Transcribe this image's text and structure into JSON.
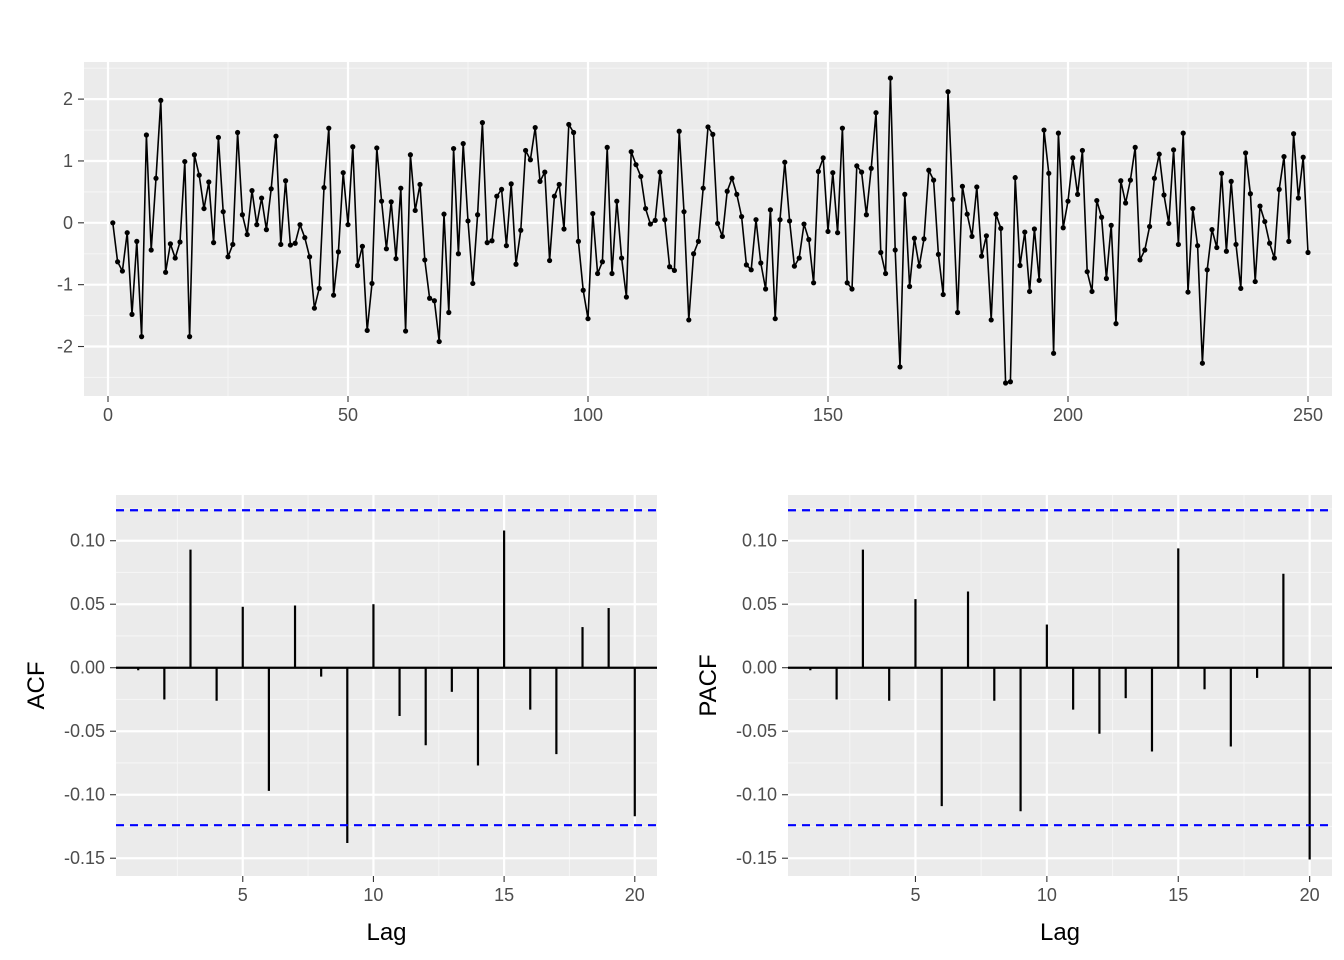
{
  "colors": {
    "panel_background": "#ebebeb",
    "major_grid": "#ffffff",
    "minor_grid": "#f5f5f5",
    "series": "#000000",
    "confidence_band": "#0000ff",
    "tick_text": "#4d4d4d"
  },
  "chart_data": [
    {
      "type": "line",
      "xlabel": "",
      "ylabel": "",
      "xlim": [
        -5,
        255
      ],
      "ylim": [
        -2.8,
        2.6
      ],
      "x_ticks": [
        0,
        50,
        100,
        150,
        200,
        250
      ],
      "y_ticks": [
        -2,
        -1,
        0,
        1,
        2
      ],
      "x_tick_labels": [
        "0",
        "50",
        "100",
        "150",
        "200",
        "250"
      ],
      "y_tick_labels": [
        "-2",
        "-1",
        "0",
        "1",
        "2"
      ],
      "grid": true,
      "markers": true,
      "x_start": 1,
      "values": [
        0.0,
        -0.63,
        -0.78,
        -0.16,
        -1.48,
        -0.3,
        -1.84,
        1.42,
        -0.44,
        0.72,
        1.98,
        -0.8,
        -0.34,
        -0.57,
        -0.31,
        0.99,
        -1.84,
        1.1,
        0.77,
        0.23,
        0.66,
        -0.32,
        1.38,
        0.18,
        -0.55,
        -0.35,
        1.46,
        0.13,
        -0.19,
        0.52,
        -0.03,
        0.4,
        -0.11,
        0.55,
        1.4,
        -0.35,
        0.68,
        -0.36,
        -0.33,
        -0.03,
        -0.24,
        -0.55,
        -1.38,
        -1.06,
        0.57,
        1.53,
        -1.17,
        -0.47,
        0.81,
        -0.03,
        1.23,
        -0.69,
        -0.38,
        -1.74,
        -0.98,
        1.21,
        0.35,
        -0.42,
        0.34,
        -0.58,
        0.56,
        -1.75,
        1.1,
        0.2,
        0.62,
        -0.6,
        -1.22,
        -1.26,
        -1.92,
        0.14,
        -1.45,
        1.2,
        -0.5,
        1.28,
        0.03,
        -0.98,
        0.13,
        1.62,
        -0.32,
        -0.29,
        0.43,
        0.54,
        -0.37,
        0.63,
        -0.67,
        -0.12,
        1.17,
        1.02,
        1.54,
        0.67,
        0.82,
        -0.61,
        0.43,
        0.62,
        -0.1,
        1.59,
        1.46,
        -0.3,
        -1.09,
        -1.55,
        0.15,
        -0.82,
        -0.63,
        1.22,
        -0.82,
        0.35,
        -0.57,
        -1.2,
        1.15,
        0.94,
        0.75,
        0.23,
        -0.02,
        0.04,
        0.82,
        0.05,
        -0.71,
        -0.77,
        1.48,
        0.18,
        -1.57,
        -0.5,
        -0.3,
        0.56,
        1.55,
        1.43,
        -0.01,
        -0.22,
        0.51,
        0.72,
        0.46,
        0.1,
        -0.68,
        -0.76,
        0.05,
        -0.65,
        -1.07,
        0.21,
        -1.55,
        0.05,
        0.98,
        0.03,
        -0.7,
        -0.57,
        -0.02,
        -0.27,
        -0.97,
        0.83,
        1.05,
        -0.14,
        0.81,
        -0.16,
        1.53,
        -0.97,
        -1.07,
        0.92,
        0.82,
        0.13,
        0.88,
        1.78,
        -0.48,
        -0.82,
        2.34,
        -0.44,
        -2.33,
        0.46,
        -1.03,
        -0.25,
        -0.7,
        -0.26,
        0.85,
        0.69,
        -0.51,
        -1.16,
        2.12,
        0.38,
        -1.45,
        0.59,
        0.14,
        -0.22,
        0.58,
        -0.54,
        -0.21,
        -1.57,
        0.14,
        -0.09,
        -2.59,
        -2.57,
        0.73,
        -0.69,
        -0.15,
        -1.11,
        -0.1,
        -0.93,
        1.5,
        0.8,
        -2.11,
        1.45,
        -0.08,
        0.35,
        1.05,
        0.46,
        1.17,
        -0.79,
        -1.11,
        0.36,
        0.09,
        -0.9,
        -0.04,
        -1.63,
        0.68,
        0.32,
        0.69,
        1.22,
        -0.6,
        -0.44,
        -0.06,
        0.72,
        1.11,
        0.45,
        -0.01,
        1.18,
        -0.35,
        1.45,
        -1.12,
        0.23,
        -0.37,
        -2.27,
        -0.76,
        -0.11,
        -0.4,
        0.8,
        -0.46,
        0.67,
        -0.35,
        -1.06,
        1.13,
        0.47,
        -0.95,
        0.27,
        0.02,
        -0.33,
        -0.57,
        0.54,
        1.07,
        -0.3,
        1.44,
        0.4,
        1.06,
        -0.48
      ]
    },
    {
      "type": "bar",
      "xlabel": "Lag",
      "ylabel": "ACF",
      "xlim": [
        0.15,
        20.85
      ],
      "ylim": [
        -0.164,
        0.136
      ],
      "x_ticks": [
        5,
        10,
        15,
        20
      ],
      "y_ticks": [
        -0.15,
        -0.1,
        -0.05,
        0.0,
        0.05,
        0.1
      ],
      "x_tick_labels": [
        "5",
        "10",
        "15",
        "20"
      ],
      "y_tick_labels": [
        "-0.15",
        "-0.10",
        "-0.05",
        "0.00",
        "0.05",
        "0.10"
      ],
      "grid": true,
      "confidence_limit": 0.124,
      "lags": [
        1,
        2,
        3,
        4,
        5,
        6,
        7,
        8,
        9,
        10,
        11,
        12,
        13,
        14,
        15,
        16,
        17,
        18,
        19,
        20
      ],
      "values": [
        -0.002,
        -0.025,
        0.093,
        -0.026,
        0.048,
        -0.097,
        0.049,
        -0.007,
        -0.138,
        0.05,
        -0.038,
        -0.061,
        -0.019,
        -0.077,
        0.108,
        -0.033,
        -0.068,
        0.032,
        0.047,
        -0.117
      ]
    },
    {
      "type": "bar",
      "xlabel": "Lag",
      "ylabel": "PACF",
      "xlim": [
        0.15,
        20.85
      ],
      "ylim": [
        -0.164,
        0.136
      ],
      "x_ticks": [
        5,
        10,
        15,
        20
      ],
      "y_ticks": [
        -0.15,
        -0.1,
        -0.05,
        0.0,
        0.05,
        0.1
      ],
      "x_tick_labels": [
        "5",
        "10",
        "15",
        "20"
      ],
      "y_tick_labels": [
        "-0.15",
        "-0.10",
        "-0.05",
        "0.00",
        "0.05",
        "0.10"
      ],
      "grid": true,
      "confidence_limit": 0.124,
      "lags": [
        1,
        2,
        3,
        4,
        5,
        6,
        7,
        8,
        9,
        10,
        11,
        12,
        13,
        14,
        15,
        16,
        17,
        18,
        19,
        20
      ],
      "values": [
        -0.002,
        -0.025,
        0.093,
        -0.026,
        0.054,
        -0.109,
        0.06,
        -0.026,
        -0.113,
        0.034,
        -0.033,
        -0.052,
        -0.024,
        -0.066,
        0.094,
        -0.017,
        -0.062,
        -0.008,
        0.074,
        -0.151
      ]
    }
  ]
}
